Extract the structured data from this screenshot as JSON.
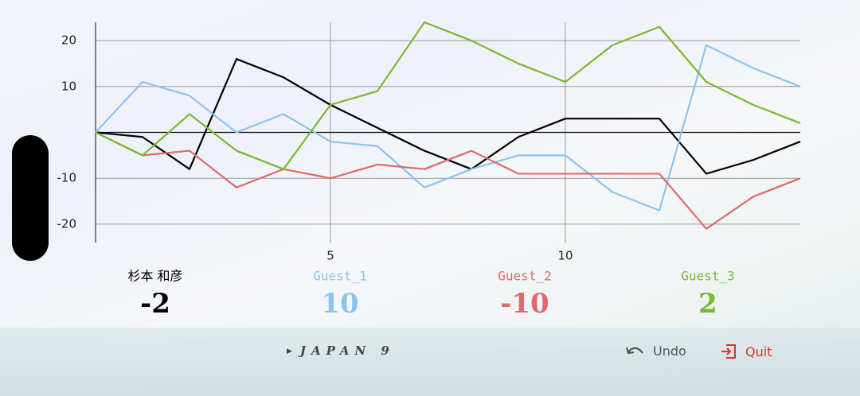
{
  "chart_data": {
    "type": "line",
    "x": [
      0,
      1,
      2,
      3,
      4,
      5,
      6,
      7,
      8,
      9,
      10,
      11,
      12,
      13,
      14,
      15
    ],
    "series": [
      {
        "name": "杉本 和彦",
        "color": "#000000",
        "values": [
          0,
          -1,
          -8,
          16,
          12,
          6,
          1,
          -4,
          -8,
          -1,
          3,
          3,
          3,
          -9,
          -6,
          -2
        ]
      },
      {
        "name": "Guest_1",
        "color": "#8cc4ef",
        "values": [
          0,
          11,
          8,
          0,
          4,
          -2,
          -3,
          -12,
          -8,
          -5,
          -5,
          -13,
          -17,
          19,
          14,
          10
        ]
      },
      {
        "name": "Guest_2",
        "color": "#dd6b6b",
        "values": [
          0,
          -5,
          -4,
          -12,
          -8,
          -10,
          -7,
          -8,
          -4,
          -9,
          -9,
          -9,
          -9,
          -21,
          -14,
          -10
        ]
      },
      {
        "name": "Guest_3",
        "color": "#7cb82f",
        "values": [
          0,
          -5,
          4,
          -4,
          -8,
          6,
          9,
          24,
          20,
          15,
          11,
          19,
          23,
          11,
          6,
          2
        ]
      }
    ],
    "xlim": [
      0,
      15
    ],
    "xticks": [
      5,
      10
    ],
    "ylim": [
      -24,
      24
    ],
    "yticks": [
      -20,
      -10,
      10,
      20
    ],
    "grid": true
  },
  "scores": [
    -2,
    10,
    -10,
    2
  ],
  "footer": {
    "room": "JAPAN 9",
    "undo": "Undo",
    "quit": "Quit"
  }
}
